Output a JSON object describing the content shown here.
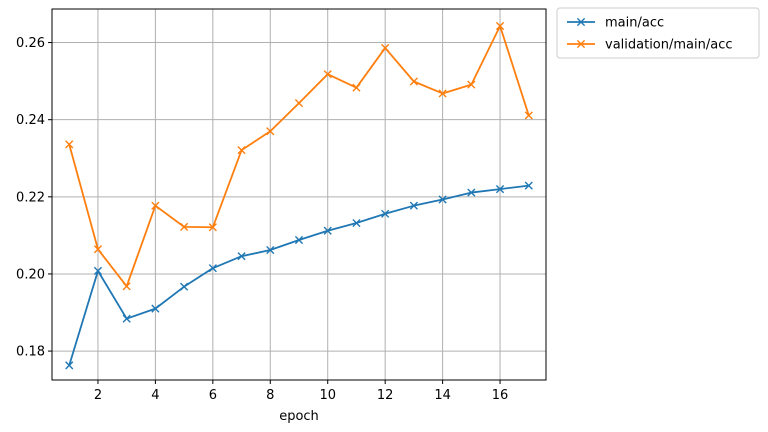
{
  "chart_data": {
    "type": "line",
    "title": "",
    "xlabel": "epoch",
    "ylabel": "",
    "xlim": [
      0.4,
      17.6
    ],
    "ylim": [
      0.1725,
      0.2687
    ],
    "xticks": [
      2,
      4,
      6,
      8,
      10,
      12,
      14,
      16
    ],
    "yticks": [
      0.18,
      0.2,
      0.22,
      0.24,
      0.26
    ],
    "ytick_labels": [
      "0.18",
      "0.20",
      "0.22",
      "0.24",
      "0.26"
    ],
    "grid": true,
    "legend_position": "outside-top-right",
    "marker": "x",
    "x": [
      1,
      2,
      3,
      4,
      5,
      6,
      7,
      8,
      9,
      10,
      11,
      12,
      13,
      14,
      15,
      16,
      17
    ],
    "series": [
      {
        "name": "main/acc",
        "color": "#1f77b4",
        "values": [
          0.1763,
          0.2008,
          0.1884,
          0.191,
          0.1967,
          0.2015,
          0.2046,
          0.2062,
          0.2088,
          0.2112,
          0.2132,
          0.2156,
          0.2177,
          0.2193,
          0.2211,
          0.222,
          0.2229
        ]
      },
      {
        "name": "validation/main/acc",
        "color": "#ff7f0e",
        "values": [
          0.2336,
          0.2064,
          0.1968,
          0.2177,
          0.2122,
          0.2121,
          0.2321,
          0.237,
          0.2443,
          0.2518,
          0.2483,
          0.2586,
          0.2499,
          0.2468,
          0.2491,
          0.2643,
          0.2411
        ]
      }
    ]
  }
}
